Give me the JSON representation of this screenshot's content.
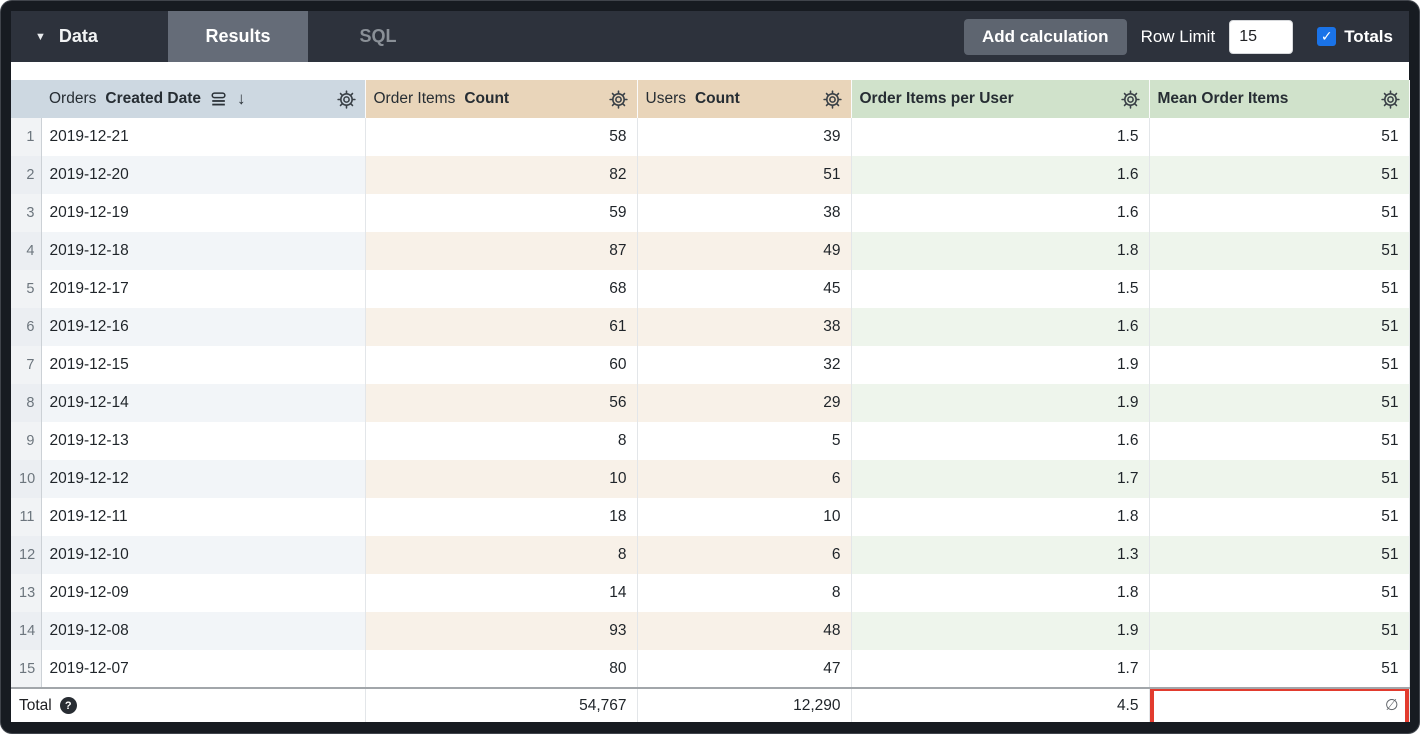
{
  "toolbar": {
    "data_label": "Data",
    "tabs": [
      {
        "label": "Results",
        "active": true
      },
      {
        "label": "SQL",
        "active": false
      }
    ],
    "add_calculation_label": "Add calculation",
    "row_limit_label": "Row Limit",
    "row_limit_value": "15",
    "totals_label": "Totals",
    "totals_checked": true
  },
  "icons": {
    "caret_down": "▼",
    "sort_desc": "↓",
    "checkmark": "✓",
    "help": "?"
  },
  "table": {
    "header": {
      "columns": [
        {
          "view": "Orders",
          "field": "Created Date",
          "type": "dimension",
          "sorted": "desc"
        },
        {
          "view": "Order Items",
          "field": "Count",
          "type": "measure"
        },
        {
          "view": "Users",
          "field": "Count",
          "type": "measure"
        },
        {
          "view": "",
          "field": "Order Items per User",
          "type": "calculation"
        },
        {
          "view": "",
          "field": "Mean Order Items",
          "type": "calculation"
        }
      ]
    },
    "rows": [
      [
        "1",
        "2019-12-21",
        "58",
        "39",
        "1.5",
        "51"
      ],
      [
        "2",
        "2019-12-20",
        "82",
        "51",
        "1.6",
        "51"
      ],
      [
        "3",
        "2019-12-19",
        "59",
        "38",
        "1.6",
        "51"
      ],
      [
        "4",
        "2019-12-18",
        "87",
        "49",
        "1.8",
        "51"
      ],
      [
        "5",
        "2019-12-17",
        "68",
        "45",
        "1.5",
        "51"
      ],
      [
        "6",
        "2019-12-16",
        "61",
        "38",
        "1.6",
        "51"
      ],
      [
        "7",
        "2019-12-15",
        "60",
        "32",
        "1.9",
        "51"
      ],
      [
        "8",
        "2019-12-14",
        "56",
        "29",
        "1.9",
        "51"
      ],
      [
        "9",
        "2019-12-13",
        "8",
        "5",
        "1.6",
        "51"
      ],
      [
        "10",
        "2019-12-12",
        "10",
        "6",
        "1.7",
        "51"
      ],
      [
        "11",
        "2019-12-11",
        "18",
        "10",
        "1.8",
        "51"
      ],
      [
        "12",
        "2019-12-10",
        "8",
        "6",
        "1.3",
        "51"
      ],
      [
        "13",
        "2019-12-09",
        "14",
        "8",
        "1.8",
        "51"
      ],
      [
        "14",
        "2019-12-08",
        "93",
        "48",
        "1.9",
        "51"
      ],
      [
        "15",
        "2019-12-07",
        "80",
        "47",
        "1.7",
        "51"
      ]
    ],
    "total": {
      "label": "Total",
      "values": [
        "54,767",
        "12,290",
        "4.5",
        "∅"
      ]
    }
  },
  "colors": {
    "dimension_header": "#cdd8e1",
    "measure_header": "#e9d5ba",
    "calculation_header": "#d0e2cb",
    "active_tab": "#656c78",
    "topbar": "#2d323c",
    "totals_checkbox": "#1a73e8",
    "highlight_border": "#e23b2e"
  }
}
